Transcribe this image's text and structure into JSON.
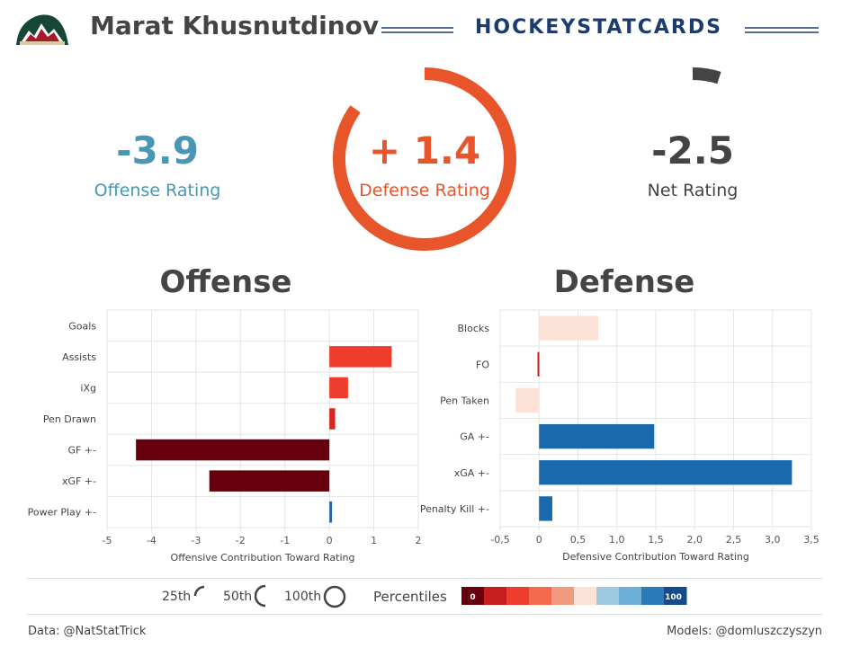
{
  "header": {
    "player_name": "Marat Khusnutdinov",
    "brand": "HOCKEYSTATCARDS",
    "team_logo_icon": "minnesota-wild-logo-icon"
  },
  "ratings": {
    "offense": {
      "value_text": "-3.9",
      "label": "Offense Rating",
      "color": "#4a96b7",
      "percentile": 0.0
    },
    "defense": {
      "value_text": "+ 1.4",
      "label": "Defense Rating",
      "color": "#e8552b",
      "percentile": 0.85
    },
    "net": {
      "value_text": "-2.5",
      "label": "Net Rating",
      "color": "#444444",
      "percentile": 0.05
    }
  },
  "sections": {
    "offense_title": "Offense",
    "defense_title": "Defense"
  },
  "chart_data": [
    {
      "type": "bar",
      "orientation": "horizontal",
      "categories": [
        "Goals",
        "Assists",
        "iXg",
        "Pen Drawn",
        "GF +-",
        "xGF +-",
        "Power Play +-"
      ],
      "values": [
        0.0,
        1.4,
        0.42,
        0.13,
        -4.35,
        -2.7,
        0.06
      ],
      "colors": [
        "#ffffff",
        "#ee3d2c",
        "#ee3d2c",
        "#d7261e",
        "#67000d",
        "#67000d",
        "#2166ac"
      ],
      "xlabel": "Offensive Contribution Toward Rating",
      "xlim": [
        -5,
        2
      ],
      "xticks": [
        "-5",
        "-4",
        "-3",
        "-2",
        "-1",
        "0",
        "1",
        "2"
      ],
      "grid": true
    },
    {
      "type": "bar",
      "orientation": "horizontal",
      "categories": [
        "Blocks",
        "FO",
        "Pen Taken",
        "GA +-",
        "xGA +-",
        "Penalty Kill +-"
      ],
      "values": [
        0.76,
        -0.02,
        -0.3,
        1.48,
        3.25,
        0.17
      ],
      "colors": [
        "#fbe1d6",
        "#c81d1d",
        "#fbe1d6",
        "#1a69ad",
        "#1a69ad",
        "#1a69ad"
      ],
      "xlabel": "Defensive Contribution Toward Rating",
      "xlim": [
        -0.5,
        3.5
      ],
      "xticks": [
        "-0,5",
        "0",
        "0,5",
        "1,0",
        "1,5",
        "2,0",
        "2,5",
        "3,0",
        "3,5"
      ],
      "grid": true
    }
  ],
  "legend": {
    "p25": "25th",
    "p50": "50th",
    "p100": "100th",
    "percentiles_label": "Percentiles",
    "scale_min": "0",
    "scale_max": "100",
    "scale_colors": [
      "#67000d",
      "#c81d1d",
      "#ee3d2c",
      "#f46a4d",
      "#f29a7e",
      "#fbe1d6",
      "#9ecae1",
      "#6baed6",
      "#2b7bba",
      "#134b8c"
    ]
  },
  "footer": {
    "data_credit": "Data: @NatStatTrick",
    "models_credit": "Models: @domluszczyszyn"
  }
}
